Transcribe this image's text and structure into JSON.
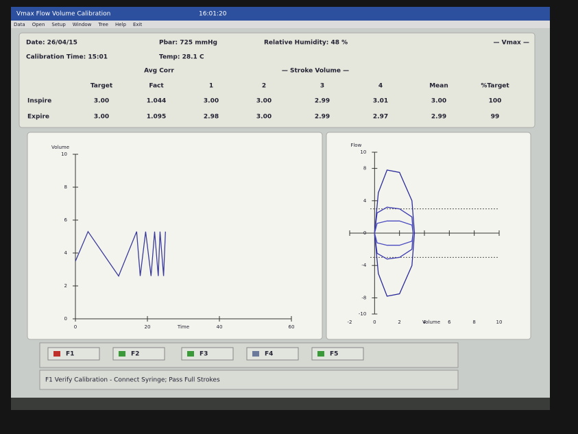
{
  "window": {
    "title": "Vmax Flow Volume Calibration",
    "clock": "16:01:20",
    "menu": [
      "Data",
      "Open",
      "Setup",
      "Window",
      "Tree",
      "Help",
      "Exit"
    ]
  },
  "info": [
    "Date: 26/04/15",
    "Pbar: 725 mmHg",
    "Relative Humidity: 48 %",
    "— Vmax —",
    "Calibration Time: 15:01",
    "Temp: 28.1 C"
  ],
  "table": {
    "group_labels": [
      "Avg Corr",
      "— Stroke Volume —"
    ],
    "columns": [
      "Target",
      "Fact",
      "1",
      "2",
      "3",
      "4",
      "Mean",
      "%Target"
    ],
    "rows": [
      [
        "Inspire",
        "3.00",
        "1.044",
        "3.00",
        "3.00",
        "2.99",
        "3.01",
        "3.00",
        "100"
      ],
      [
        "Expire",
        "3.00",
        "1.095",
        "2.98",
        "3.00",
        "2.99",
        "2.97",
        "2.99",
        "99"
      ]
    ]
  },
  "plots": [
    {
      "type": "line",
      "y_label": "Volume",
      "x_label": "Time",
      "xlim": [
        0,
        60
      ],
      "xticks": [
        0,
        20,
        40,
        60
      ],
      "ylim": [
        0,
        10
      ],
      "yticks": [
        0,
        2,
        4,
        6,
        8,
        10
      ],
      "series": [
        {
          "color": "#3a3a9a",
          "x": [
            0,
            3.5,
            12,
            17,
            18,
            19.5,
            21,
            22,
            23,
            23.5,
            24.5,
            25
          ],
          "y": [
            3.5,
            5.3,
            2.6,
            5.3,
            2.6,
            5.3,
            2.6,
            5.3,
            2.6,
            5.3,
            2.6,
            5.3
          ]
        }
      ]
    },
    {
      "type": "loop",
      "y_label": "Flow",
      "x_label": "Volume",
      "xlim": [
        -2,
        10
      ],
      "xticks": [
        -2,
        0,
        2,
        4,
        6,
        8,
        10
      ],
      "ylim": [
        -10,
        10
      ],
      "yticks": [
        -10,
        -8,
        -4,
        0,
        4,
        8,
        10
      ],
      "reference_lines": [
        3,
        -3
      ],
      "series": [
        {
          "color": "#2a2a9a",
          "x": [
            0,
            0.3,
            1,
            2,
            3,
            3.2,
            3,
            2,
            1,
            0.3,
            0
          ],
          "y": [
            0,
            5,
            7.8,
            7.5,
            4,
            0,
            -4,
            -7.5,
            -7.8,
            -5,
            0
          ]
        },
        {
          "color": "#3b3bb0",
          "x": [
            0,
            0.2,
            1,
            2,
            3,
            3.1,
            3,
            2,
            1,
            0.2,
            0
          ],
          "y": [
            0,
            2.5,
            3.2,
            3,
            2,
            0,
            -2,
            -3,
            -3.2,
            -2.5,
            0
          ]
        },
        {
          "color": "#4a4ac0",
          "x": [
            0,
            0.2,
            1,
            2,
            3,
            3.1,
            3,
            2,
            1,
            0.2,
            0
          ],
          "y": [
            0,
            1.2,
            1.5,
            1.5,
            1,
            0,
            -1,
            -1.5,
            -1.5,
            -1.2,
            0
          ]
        }
      ]
    }
  ],
  "buttons": [
    "F1",
    "F2",
    "F3",
    "F4",
    "F5"
  ],
  "status": "F1 Verify Calibration - Connect Syringe; Pass Full Strokes"
}
